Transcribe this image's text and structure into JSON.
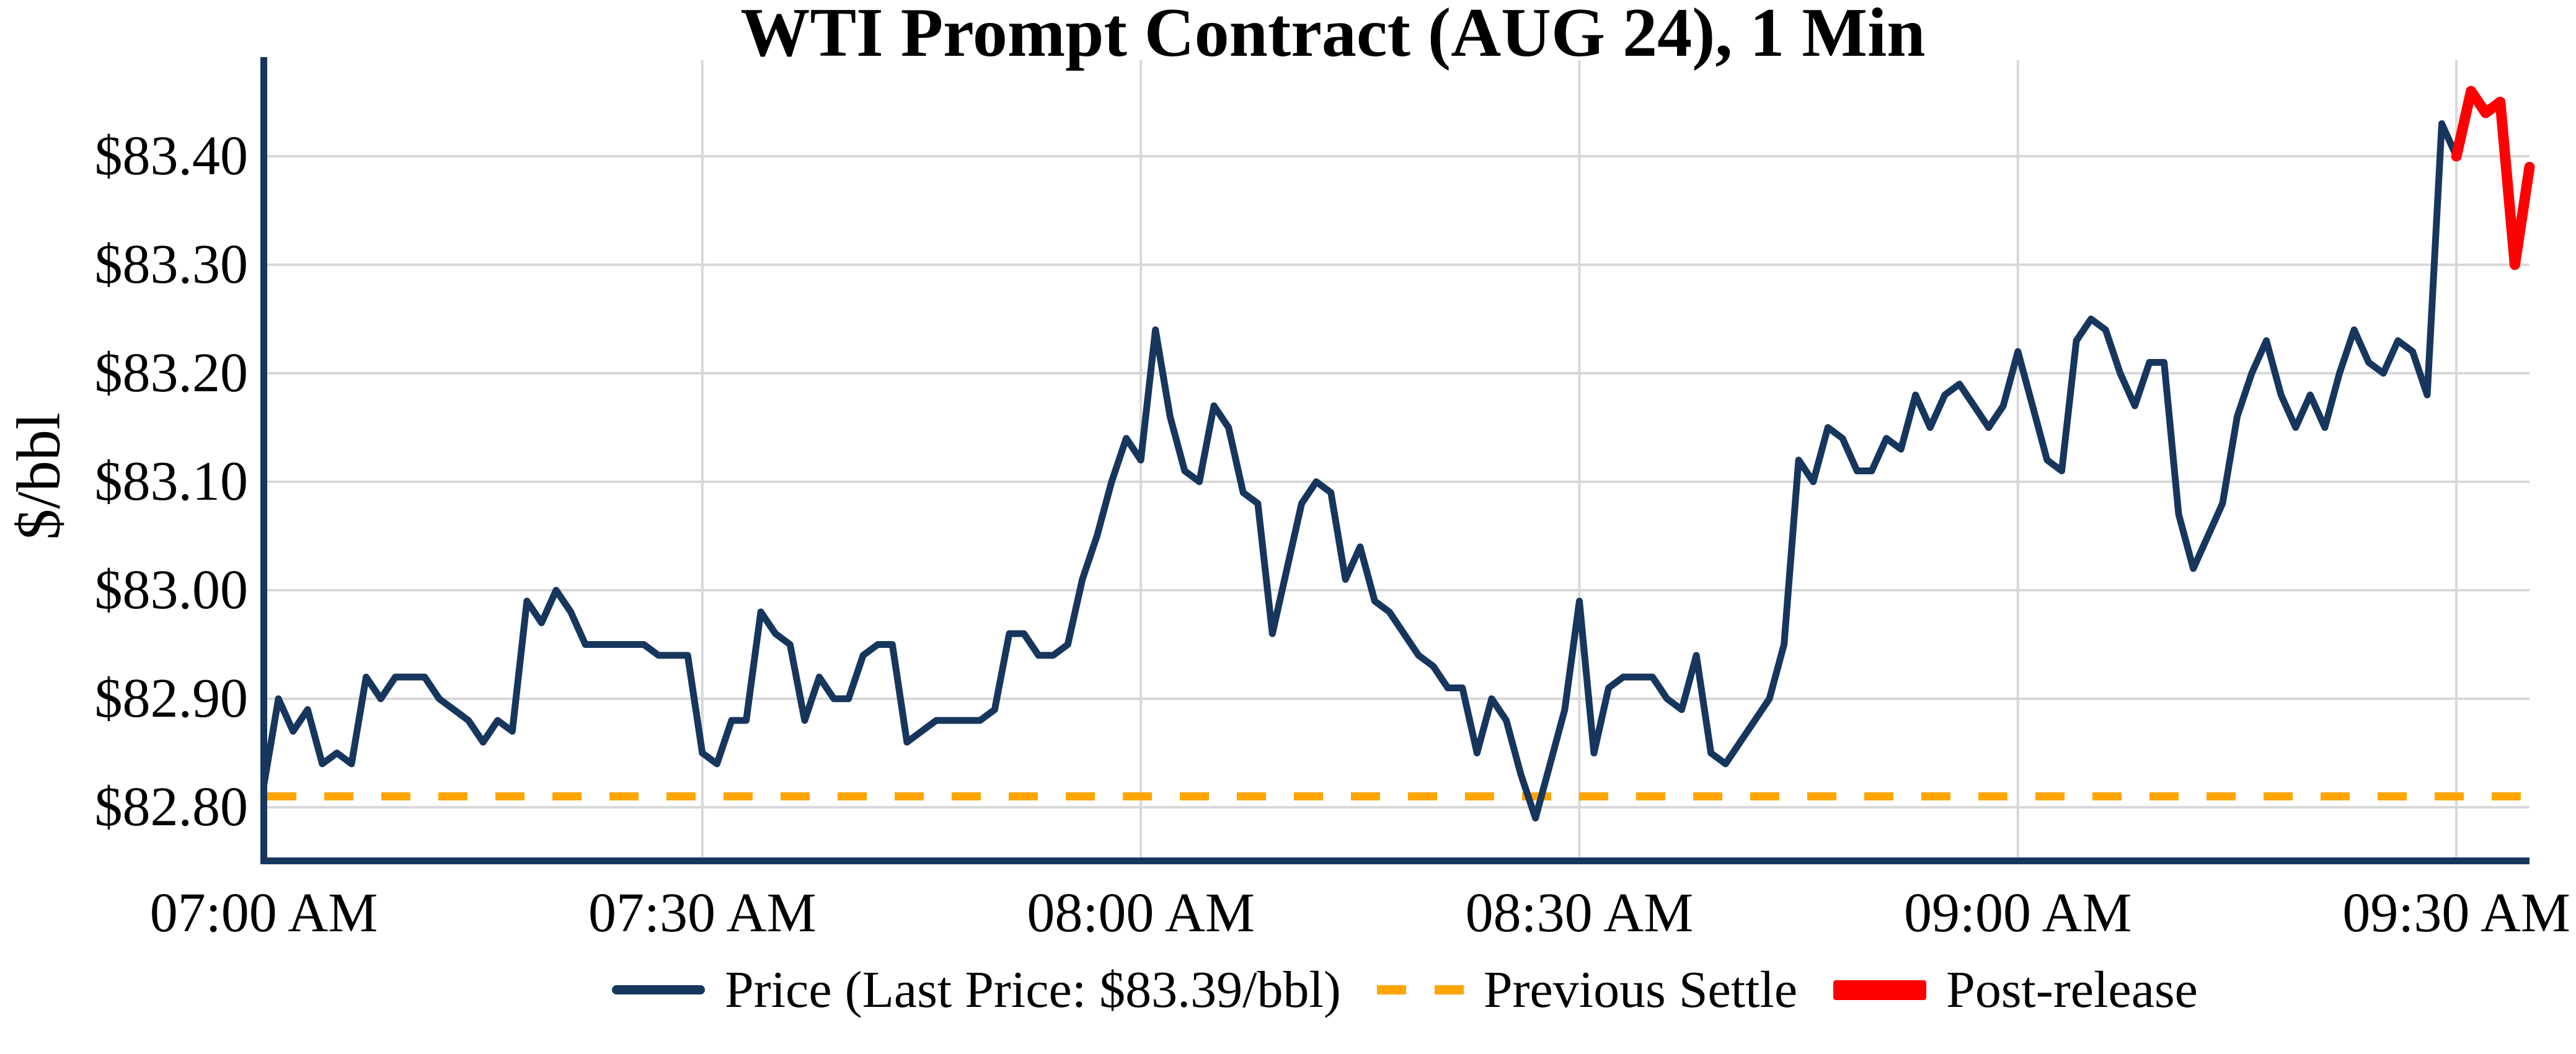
{
  "figure": {
    "title": "WTI Prompt Contract (AUG 24), 1 Min",
    "y_axis_label": "$/bbl",
    "y_tick_labels": [
      "$83.40",
      "$83.30",
      "$83.20",
      "$83.10",
      "$83.00",
      "$82.90",
      "$82.80"
    ],
    "x_tick_labels": [
      "07:00 AM",
      "07:30 AM",
      "08:00 AM",
      "08:30 AM",
      "09:00 AM",
      "09:30 AM"
    ]
  },
  "legend": {
    "price_label": "Price (Last Price: $83.39/bbl)",
    "settle_label": "Previous Settle",
    "post_release_label": "Post-release"
  },
  "colors": {
    "price": "#17365D",
    "settle": "#FFA500",
    "post_release": "#FF0000",
    "grid": "#D8D8D8",
    "background": "#FFFFFF"
  },
  "chart_data": {
    "type": "line",
    "title": "WTI Prompt Contract (AUG 24), 1 Min",
    "xlabel": "",
    "ylabel": "$/bbl",
    "x_start": "07:00 AM",
    "x_end": "09:35 AM",
    "interval_minutes": 1,
    "x_ticks": [
      "07:00 AM",
      "07:30 AM",
      "08:00 AM",
      "08:30 AM",
      "09:00 AM",
      "09:30 AM"
    ],
    "x_tick_minutes": [
      0,
      30,
      60,
      90,
      120,
      150
    ],
    "y_tick_values": [
      83.4,
      83.3,
      83.2,
      83.1,
      83.0,
      82.9,
      82.8
    ],
    "ylim": [
      82.75,
      83.49
    ],
    "xlim_minutes": [
      0,
      155
    ],
    "grid": true,
    "legend_position": "bottom-center",
    "last_price": 83.39,
    "previous_settle": 82.81,
    "series": [
      {
        "name": "Price",
        "start_minute": 0,
        "values": [
          82.82,
          82.9,
          82.87,
          82.89,
          82.84,
          82.85,
          82.84,
          82.92,
          82.9,
          82.92,
          82.92,
          82.92,
          82.9,
          82.89,
          82.88,
          82.86,
          82.88,
          82.87,
          82.99,
          82.97,
          83.0,
          82.98,
          82.95,
          82.95,
          82.95,
          82.95,
          82.95,
          82.94,
          82.94,
          82.94,
          82.85,
          82.84,
          82.88,
          82.88,
          82.98,
          82.96,
          82.95,
          82.88,
          82.92,
          82.9,
          82.9,
          82.94,
          82.95,
          82.95,
          82.86,
          82.87,
          82.88,
          82.88,
          82.88,
          82.88,
          82.89,
          82.96,
          82.96,
          82.94,
          82.94,
          82.95,
          83.01,
          83.05,
          83.1,
          83.14,
          83.12,
          83.24,
          83.16,
          83.11,
          83.1,
          83.17,
          83.15,
          83.09,
          83.08,
          82.96,
          83.02,
          83.08,
          83.1,
          83.09,
          83.01,
          83.04,
          82.99,
          82.98,
          82.96,
          82.94,
          82.93,
          82.91,
          82.91,
          82.85,
          82.9,
          82.88,
          82.83,
          82.79,
          82.84,
          82.89,
          82.99,
          82.85,
          82.91,
          82.92,
          82.92,
          82.92,
          82.9,
          82.89,
          82.94,
          82.85,
          82.84,
          82.86,
          82.88,
          82.9,
          82.95,
          83.12,
          83.1,
          83.15,
          83.14,
          83.11,
          83.11,
          83.14,
          83.13,
          83.18,
          83.15,
          83.18,
          83.19,
          83.17,
          83.15,
          83.17,
          83.22,
          83.17,
          83.12,
          83.11,
          83.23,
          83.25,
          83.24,
          83.2,
          83.17,
          83.21,
          83.21,
          83.07,
          83.02,
          83.05,
          83.08,
          83.16,
          83.2,
          83.23,
          83.18,
          83.15,
          83.18,
          83.15,
          83.2,
          83.24,
          83.21,
          83.2,
          83.23,
          83.22,
          83.18,
          83.43,
          83.4
        ]
      },
      {
        "name": "Post-release",
        "start_minute": 150,
        "values": [
          83.4,
          83.46,
          83.44,
          83.45,
          83.3,
          83.39
        ]
      }
    ]
  }
}
